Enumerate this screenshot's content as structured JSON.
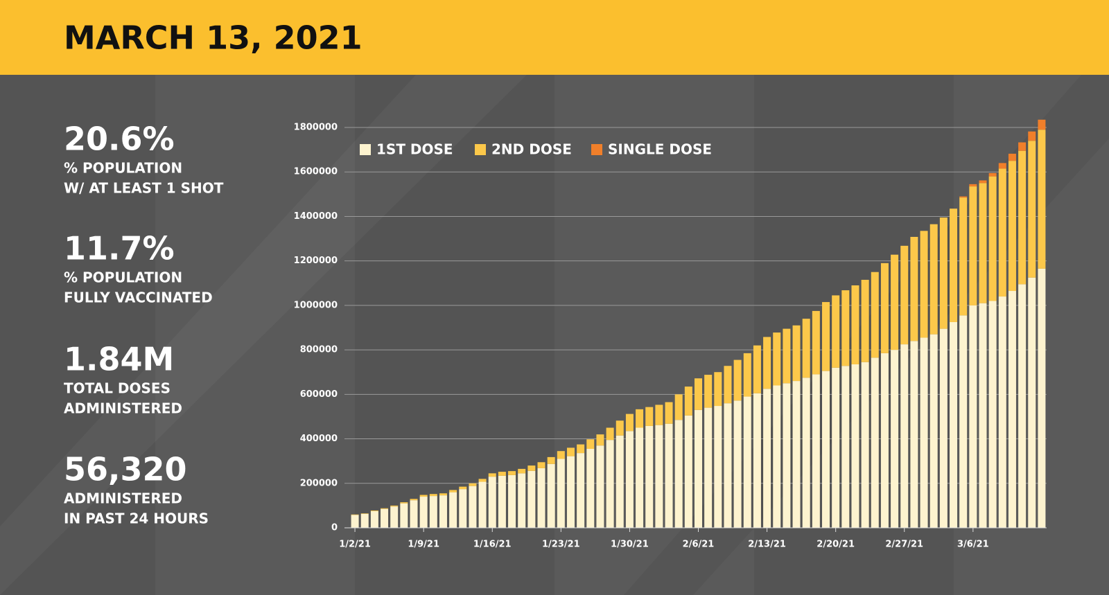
{
  "header": {
    "title": "MARCH 13, 2021"
  },
  "stats": [
    {
      "value": "20.6%",
      "lines": [
        "% POPULATION",
        "W/ AT LEAST 1 SHOT"
      ]
    },
    {
      "value": "11.7%",
      "lines": [
        "% POPULATION",
        "FULLY VACCINATED"
      ]
    },
    {
      "value": "1.84M",
      "lines": [
        "TOTAL DOSES",
        "ADMINISTERED"
      ]
    },
    {
      "value": "56,320",
      "lines": [
        "ADMINISTERED",
        "IN PAST 24 HOURS"
      ]
    }
  ],
  "chart_data": {
    "type": "stacked_bar",
    "categories": [
      "1/2/21",
      null,
      null,
      null,
      null,
      null,
      null,
      "1/9/21",
      null,
      null,
      null,
      null,
      null,
      null,
      "1/16/21",
      null,
      null,
      null,
      null,
      null,
      null,
      "1/23/21",
      null,
      null,
      null,
      null,
      null,
      null,
      "1/30/21",
      null,
      null,
      null,
      null,
      null,
      null,
      "2/6/21",
      null,
      null,
      null,
      null,
      null,
      null,
      "2/13/21",
      null,
      null,
      null,
      null,
      null,
      null,
      "2/20/21",
      null,
      null,
      null,
      null,
      null,
      null,
      "2/27/21",
      null,
      null,
      null,
      null,
      null,
      null,
      "3/6/21",
      null,
      null,
      null,
      null,
      null,
      null,
      null
    ],
    "series": [
      {
        "name": "1ST DOSE",
        "color": "#fdf3cf",
        "values": [
          58000,
          63000,
          75000,
          85000,
          96000,
          110000,
          124000,
          140000,
          143000,
          146000,
          160000,
          174000,
          188000,
          207000,
          230000,
          234000,
          237000,
          245000,
          256000,
          268000,
          287000,
          310000,
          322000,
          336000,
          355000,
          370000,
          395000,
          415000,
          435000,
          450000,
          458000,
          462000,
          468000,
          485000,
          505000,
          530000,
          540000,
          548000,
          560000,
          572000,
          590000,
          605000,
          625000,
          640000,
          650000,
          660000,
          675000,
          690000,
          705000,
          720000,
          728000,
          735000,
          745000,
          765000,
          785000,
          800000,
          825000,
          840000,
          855000,
          870000,
          895000,
          925000,
          955000,
          1000000,
          1010000,
          1020000,
          1040000,
          1065000,
          1095000,
          1125000,
          1165000
        ]
      },
      {
        "name": "2ND DOSE",
        "color": "#fcc84a",
        "values": [
          2000,
          2000,
          3000,
          3000,
          4000,
          5000,
          6000,
          8000,
          9000,
          9000,
          10000,
          11000,
          12000,
          13000,
          15000,
          18000,
          18000,
          20000,
          24000,
          27000,
          31000,
          35000,
          38000,
          39000,
          43000,
          50000,
          55000,
          67000,
          77000,
          83000,
          85000,
          91000,
          97000,
          115000,
          130000,
          142000,
          148000,
          152000,
          168000,
          183000,
          195000,
          215000,
          233000,
          238000,
          245000,
          250000,
          265000,
          285000,
          310000,
          325000,
          340000,
          355000,
          370000,
          385000,
          405000,
          428000,
          443000,
          468000,
          480000,
          495000,
          500000,
          510000,
          530000,
          535000,
          540000,
          560000,
          575000,
          585000,
          600000,
          615000,
          625000
        ]
      },
      {
        "name": "SINGLE DOSE",
        "color": "#f07f2a",
        "values": [
          0,
          0,
          0,
          0,
          0,
          0,
          0,
          0,
          0,
          0,
          0,
          0,
          0,
          0,
          0,
          0,
          0,
          0,
          0,
          0,
          0,
          0,
          0,
          0,
          0,
          0,
          0,
          0,
          0,
          0,
          0,
          0,
          0,
          0,
          0,
          0,
          0,
          0,
          0,
          0,
          0,
          0,
          0,
          0,
          0,
          0,
          0,
          0,
          0,
          0,
          0,
          0,
          0,
          0,
          0,
          0,
          0,
          0,
          0,
          0,
          0,
          0,
          5000,
          10000,
          12000,
          15000,
          25000,
          32000,
          38000,
          42000,
          45000
        ]
      }
    ],
    "ylim": [
      0,
      1850000
    ],
    "yticks": [
      0,
      200000,
      400000,
      600000,
      800000,
      1000000,
      1200000,
      1400000,
      1600000,
      1800000
    ],
    "grid": true,
    "legend": "top-left"
  }
}
